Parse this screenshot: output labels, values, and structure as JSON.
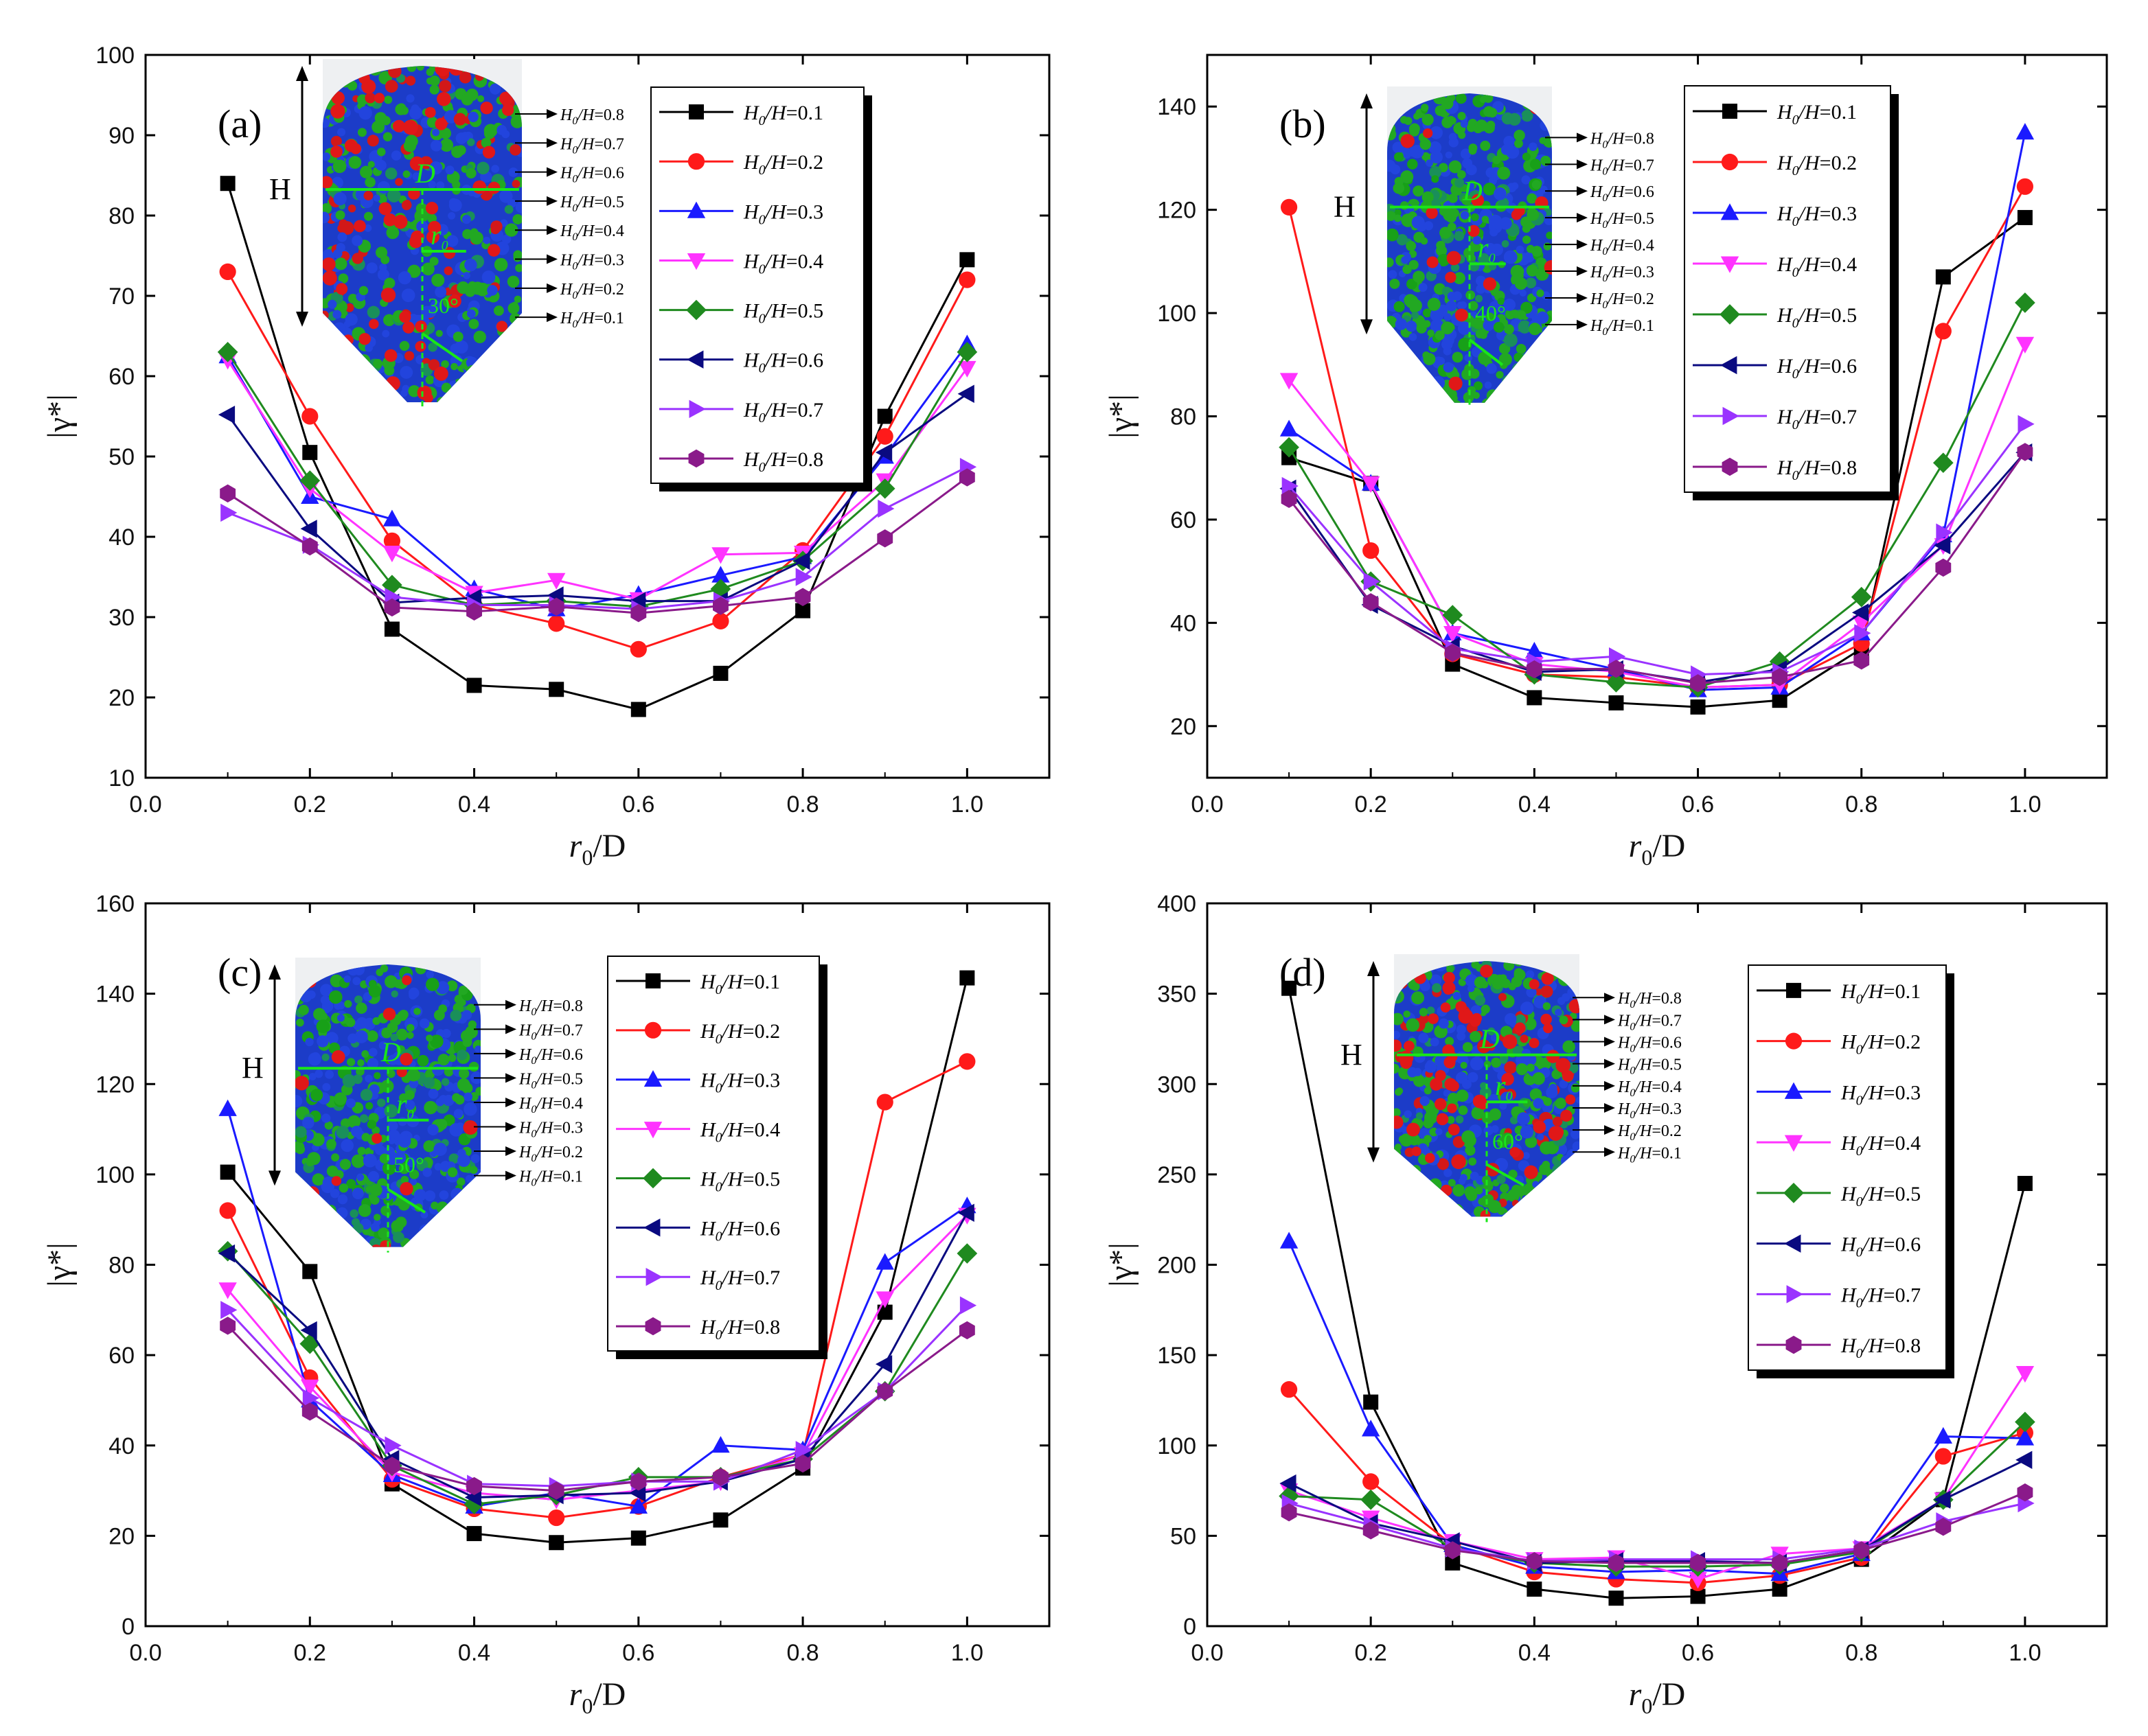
{
  "colors": [
    "#000000",
    "#ff1a1a",
    "#1a1aff",
    "#ff33ff",
    "#1f8a1f",
    "#0a0a80",
    "#9a33ff",
    "#8a1a8a"
  ],
  "markers": [
    "square",
    "circle",
    "triangle-up",
    "triangle-down",
    "diamond",
    "triangle-left",
    "triangle-right",
    "hexagon"
  ],
  "chart_data": [
    {
      "type": "line",
      "panel": "(a)",
      "xlabel_main": "r",
      "xlabel_sub": "0",
      "xlabel_rest": "/D",
      "ylabel": "|γ*|",
      "xlim": [
        0.0,
        1.1
      ],
      "ylim": [
        10,
        100
      ],
      "xticks": [
        "0.0",
        "0.2",
        "0.4",
        "0.6",
        "0.8",
        "1.0"
      ],
      "yticks": [
        "10",
        "20",
        "30",
        "40",
        "50",
        "60",
        "70",
        "80",
        "90",
        "100"
      ],
      "x": [
        0.1,
        0.2,
        0.3,
        0.4,
        0.5,
        0.6,
        0.7,
        0.8,
        0.9,
        1.0
      ],
      "series": [
        {
          "name": "H0/H=0.1",
          "values": [
            84,
            50.5,
            28.5,
            21.5,
            21,
            18.5,
            23,
            30.8,
            55,
            74.5
          ]
        },
        {
          "name": "H0/H=0.2",
          "values": [
            73,
            55,
            39.5,
            31.5,
            29.2,
            26,
            29.5,
            38.3,
            52.5,
            72
          ]
        },
        {
          "name": "H0/H=0.3",
          "values": [
            62.5,
            45,
            42.2,
            33.5,
            31,
            32.8,
            35.2,
            37.5,
            50,
            64
          ]
        },
        {
          "name": "H0/H=0.4",
          "values": [
            62,
            46,
            38,
            33,
            34.6,
            32.2,
            37.8,
            38,
            47,
            61
          ]
        },
        {
          "name": "H0/H=0.5",
          "values": [
            63,
            47,
            34,
            31.5,
            32,
            31.3,
            33.5,
            37,
            46,
            63
          ]
        },
        {
          "name": "H0/H=0.6",
          "values": [
            55.2,
            41,
            31.8,
            32.4,
            32.7,
            32,
            32,
            37,
            50.5,
            57.8
          ]
        },
        {
          "name": "H0/H=0.7",
          "values": [
            43,
            39,
            32.5,
            31.5,
            31.5,
            31,
            32,
            35,
            43.5,
            48.7
          ]
        },
        {
          "name": "H0/H=0.8",
          "values": [
            45.4,
            38.8,
            31.2,
            30.7,
            31.3,
            30.5,
            31.4,
            32.5,
            39.8,
            47.4
          ]
        }
      ],
      "legend": [
        "=0.1",
        "=0.2",
        "=0.3",
        "=0.4",
        "=0.5",
        "=0.6",
        "=0.7",
        "=0.8"
      ],
      "inset": {
        "height_label": "H",
        "diameter_label": "D",
        "radius_label": "r",
        "radius_sub": "0",
        "angle_label": "30°",
        "bed_color": "#d21818",
        "levels": [
          "=0.8",
          "=0.7",
          "=0.6",
          "=0.5",
          "=0.4",
          "=0.3",
          "=0.2",
          "=0.1"
        ]
      }
    },
    {
      "type": "line",
      "panel": "(b)",
      "xlabel_main": "r",
      "xlabel_sub": "0",
      "xlabel_rest": "/D",
      "ylabel": "|γ*|",
      "xlim": [
        0.0,
        1.1
      ],
      "ylim": [
        10,
        150
      ],
      "xticks": [
        "0.0",
        "0.2",
        "0.4",
        "0.6",
        "0.8",
        "1.0"
      ],
      "yticks": [
        "20",
        "40",
        "60",
        "80",
        "100",
        "120",
        "140"
      ],
      "x": [
        0.1,
        0.2,
        0.3,
        0.4,
        0.5,
        0.6,
        0.7,
        0.8,
        0.9,
        1.0
      ],
      "series": [
        {
          "name": "H0/H=0.1",
          "values": [
            72,
            67,
            32,
            25.5,
            24.5,
            23.7,
            25,
            35,
            107,
            118.5
          ]
        },
        {
          "name": "H0/H=0.2",
          "values": [
            120.5,
            54,
            34,
            30,
            29.5,
            27.5,
            28,
            36,
            96.5,
            124.5
          ]
        },
        {
          "name": "H0/H=0.3",
          "values": [
            77.5,
            67,
            38,
            34.5,
            31,
            27,
            27.5,
            38,
            57,
            135
          ]
        },
        {
          "name": "H0/H=0.4",
          "values": [
            87,
            67,
            38,
            32,
            30.5,
            27.5,
            28,
            40,
            55,
            94
          ]
        },
        {
          "name": "H0/H=0.5",
          "values": [
            74,
            48,
            41.5,
            30,
            28.5,
            27.5,
            32.5,
            45,
            71,
            102
          ]
        },
        {
          "name": "H0/H=0.6",
          "values": [
            66,
            43.5,
            35.5,
            30.5,
            31,
            28.5,
            31,
            42,
            55,
            73
          ]
        },
        {
          "name": "H0/H=0.7",
          "values": [
            66.5,
            48,
            35,
            32.5,
            33.5,
            30,
            30.5,
            38,
            57.5,
            78.5
          ]
        },
        {
          "name": "H0/H=0.8",
          "values": [
            64,
            44,
            34.2,
            31,
            31.1,
            28.3,
            29.5,
            32.7,
            50.7,
            73.1
          ]
        }
      ],
      "legend": [
        "=0.1",
        "=0.2",
        "=0.3",
        "=0.4",
        "=0.5",
        "=0.6",
        "=0.7",
        "=0.8"
      ],
      "inset": {
        "height_label": "H",
        "diameter_label": "D",
        "radius_label": "r",
        "radius_sub": "0",
        "angle_label": "40°",
        "bed_color": "#18a018",
        "levels": [
          "=0.8",
          "=0.7",
          "=0.6",
          "=0.5",
          "=0.4",
          "=0.3",
          "=0.2",
          "=0.1"
        ]
      }
    },
    {
      "type": "line",
      "panel": "(c)",
      "xlabel_main": "r",
      "xlabel_sub": "0",
      "xlabel_rest": "/D",
      "ylabel": "|γ*|",
      "xlim": [
        0.0,
        1.1
      ],
      "ylim": [
        0,
        160
      ],
      "xticks": [
        "0.0",
        "0.2",
        "0.4",
        "0.6",
        "0.8",
        "1.0"
      ],
      "yticks": [
        "0",
        "20",
        "40",
        "60",
        "80",
        "100",
        "120",
        "140",
        "160"
      ],
      "x": [
        0.1,
        0.2,
        0.3,
        0.4,
        0.5,
        0.6,
        0.7,
        0.8,
        0.9,
        1.0
      ],
      "series": [
        {
          "name": "H0/H=0.1",
          "values": [
            100.5,
            78.5,
            31.5,
            20.5,
            18.5,
            19.5,
            23.5,
            35,
            69.5,
            143.5
          ]
        },
        {
          "name": "H0/H=0.2",
          "values": [
            92,
            55,
            32.5,
            26,
            24,
            26.5,
            33,
            38,
            116,
            125
          ]
        },
        {
          "name": "H0/H=0.3",
          "values": [
            114.5,
            50,
            33.5,
            26.5,
            29.5,
            26.5,
            40,
            39,
            80.5,
            93
          ]
        },
        {
          "name": "H0/H=0.4",
          "values": [
            74.5,
            53,
            34,
            29.5,
            28,
            30,
            32,
            38,
            72.5,
            91
          ]
        },
        {
          "name": "H0/H=0.5",
          "values": [
            83,
            62.5,
            35.5,
            27,
            29,
            33,
            33,
            37,
            52,
            82.5
          ]
        },
        {
          "name": "H0/H=0.6",
          "values": [
            82.5,
            65.5,
            37,
            28.5,
            29,
            29.5,
            32,
            37,
            58,
            91.5
          ]
        },
        {
          "name": "H0/H=0.7",
          "values": [
            70,
            50.5,
            40,
            31.5,
            31,
            32,
            32,
            39,
            52,
            71
          ]
        },
        {
          "name": "H0/H=0.8",
          "values": [
            66.5,
            47.5,
            35.5,
            31,
            30,
            32,
            33,
            36,
            52,
            65.5
          ]
        }
      ],
      "legend": [
        "=0.1",
        "=0.2",
        "=0.3",
        "=0.4",
        "=0.5",
        "=0.6",
        "=0.7",
        "=0.8"
      ],
      "inset": {
        "height_label": "H",
        "diameter_label": "D",
        "radius_label": "r",
        "radius_sub": "0",
        "angle_label": "50°",
        "bed_color": "#18a018",
        "levels": [
          "=0.8",
          "=0.7",
          "=0.6",
          "=0.5",
          "=0.4",
          "=0.3",
          "=0.2",
          "=0.1"
        ]
      }
    },
    {
      "type": "line",
      "panel": "(d)",
      "xlabel_main": "r",
      "xlabel_sub": "0",
      "xlabel_rest": "/D",
      "ylabel": "|γ*|",
      "xlim": [
        0.0,
        1.1
      ],
      "ylim": [
        0,
        400
      ],
      "xticks": [
        "0.0",
        "0.2",
        "0.4",
        "0.6",
        "0.8",
        "1.0"
      ],
      "yticks": [
        "0",
        "50",
        "100",
        "150",
        "200",
        "250",
        "300",
        "350",
        "400"
      ],
      "x": [
        0.1,
        0.2,
        0.3,
        0.4,
        0.5,
        0.6,
        0.7,
        0.8,
        0.9,
        1.0
      ],
      "series": [
        {
          "name": "H0/H=0.1",
          "values": [
            353,
            124,
            35,
            20.5,
            15.5,
            16.5,
            20.5,
            37,
            70,
            245
          ]
        },
        {
          "name": "H0/H=0.2",
          "values": [
            131,
            80,
            45,
            30,
            26,
            24,
            28,
            38,
            94,
            107
          ]
        },
        {
          "name": "H0/H=0.3",
          "values": [
            213,
            109,
            45,
            33,
            30,
            31,
            29,
            40,
            105,
            104
          ]
        },
        {
          "name": "H0/H=0.4",
          "values": [
            75,
            60,
            47,
            37,
            38,
            26,
            40,
            43,
            70,
            140
          ]
        },
        {
          "name": "H0/H=0.5",
          "values": [
            72,
            70,
            43,
            35,
            33,
            33,
            34,
            41,
            70,
            113
          ]
        },
        {
          "name": "H0/H=0.6",
          "values": [
            79,
            57,
            47,
            35,
            36,
            36,
            35,
            42,
            70,
            92
          ]
        },
        {
          "name": "H0/H=0.7",
          "values": [
            68,
            56,
            43,
            36,
            37,
            37,
            37,
            43,
            58,
            68
          ]
        },
        {
          "name": "H0/H=0.8",
          "values": [
            63,
            53,
            42,
            36,
            35,
            35,
            35,
            42,
            55,
            74
          ]
        }
      ],
      "legend": [
        "=0.1",
        "=0.2",
        "=0.3",
        "=0.4",
        "=0.5",
        "=0.6",
        "=0.7",
        "=0.8"
      ],
      "inset": {
        "height_label": "H",
        "diameter_label": "D",
        "radius_label": "r",
        "radius_sub": "0",
        "angle_label": "60°",
        "bed_color": "#d21818",
        "levels": [
          "=0.8",
          "=0.7",
          "=0.6",
          "=0.5",
          "=0.4",
          "=0.3",
          "=0.2",
          "=0.1"
        ]
      }
    }
  ]
}
